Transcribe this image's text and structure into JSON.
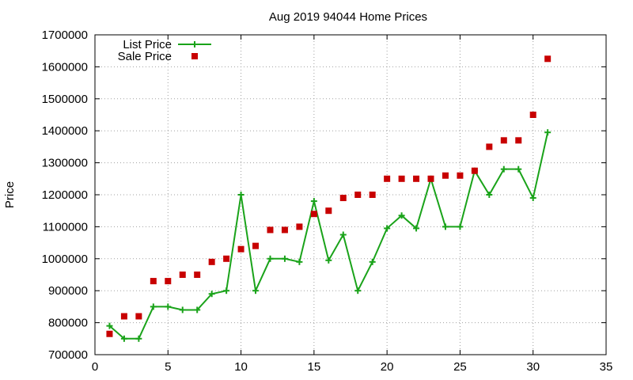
{
  "chart_data": {
    "type": "line",
    "title": "Aug 2019 94044 Home Prices",
    "xlabel": "",
    "ylabel": "Price",
    "xlim": [
      0,
      35
    ],
    "ylim": [
      700000,
      1700000
    ],
    "xticks": [
      "0",
      "5",
      "10",
      "15",
      "20",
      "25",
      "30",
      "35"
    ],
    "yticks": [
      "700000",
      "800000",
      "900000",
      "1000000",
      "1100000",
      "1200000",
      "1300000",
      "1400000",
      "1500000",
      "1600000",
      "1700000"
    ],
    "grid": true,
    "legend_position": "top-left",
    "x": [
      1,
      2,
      3,
      4,
      5,
      6,
      7,
      8,
      9,
      10,
      11,
      12,
      13,
      14,
      15,
      16,
      17,
      18,
      19,
      20,
      21,
      22,
      23,
      24,
      25,
      26,
      27,
      28,
      29,
      30,
      31
    ],
    "series": [
      {
        "name": "List Price",
        "style": "line-plus",
        "color": "#1aa31a",
        "values": [
          790000,
          750000,
          750000,
          850000,
          850000,
          840000,
          840000,
          890000,
          900000,
          1200000,
          900000,
          1000000,
          1000000,
          990000,
          1180000,
          995000,
          1075000,
          900000,
          990000,
          1095000,
          1135000,
          1095000,
          1250000,
          1100000,
          1100000,
          1275000,
          1200000,
          1280000,
          1280000,
          1190000,
          1395000
        ]
      },
      {
        "name": "Sale Price",
        "style": "square",
        "color": "#c80000",
        "values": [
          765000,
          820000,
          820000,
          930000,
          930000,
          950000,
          950000,
          990000,
          1000000,
          1030000,
          1040000,
          1090000,
          1090000,
          1100000,
          1140000,
          1150000,
          1190000,
          1200000,
          1200000,
          1250000,
          1250000,
          1250000,
          1250000,
          1260000,
          1260000,
          1275000,
          1350000,
          1370000,
          1370000,
          1450000,
          1625000
        ]
      }
    ]
  }
}
